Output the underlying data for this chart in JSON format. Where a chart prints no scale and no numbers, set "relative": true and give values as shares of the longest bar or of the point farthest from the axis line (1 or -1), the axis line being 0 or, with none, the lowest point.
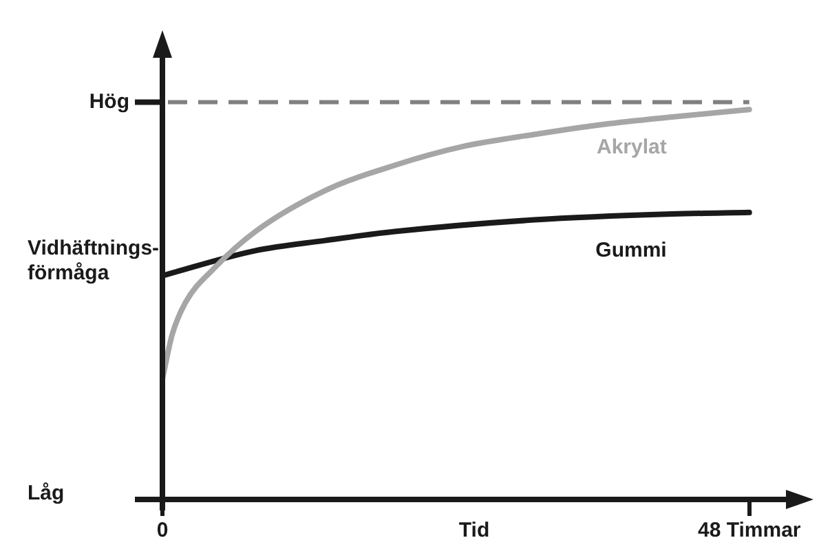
{
  "chart_data": {
    "type": "line",
    "relative": true,
    "xlabel": "Tid",
    "ylabel": "Vidhäftnings-förmåga",
    "annotations": [
      "Låg"
    ],
    "x": [
      0,
      0.8,
      1.9,
      4.2,
      7.6,
      13.3,
      19,
      24.7,
      30.4,
      36.1,
      41.7,
      48
    ],
    "xlim": [
      0,
      51
    ],
    "xticks": [
      0,
      {
        "value": 48,
        "label": "48 Timmar"
      }
    ],
    "series": [
      {
        "name": "Akrylat",
        "color": "#a6a6a6",
        "values": [
          0.309,
          0.423,
          0.506,
          0.592,
          0.687,
          0.792,
          0.857,
          0.906,
          0.936,
          0.962,
          0.981,
          1
        ]
      },
      {
        "name": "Gummi",
        "color": "#1a1a1a",
        "x": [
          0,
          7.6,
          13.3,
          19,
          30.4,
          41.7,
          48
        ],
        "values": [
          0.574,
          0.638,
          0.664,
          0.687,
          0.717,
          0.732,
          0.736
        ]
      }
    ],
    "ref_lines": [
      {
        "axis": "y",
        "value": 1.019,
        "label": "Hög",
        "color": "#808080",
        "line_style": "dashed"
      }
    ],
    "grid": false,
    "legend": false,
    "marker": "none",
    "line_style": "solid"
  }
}
